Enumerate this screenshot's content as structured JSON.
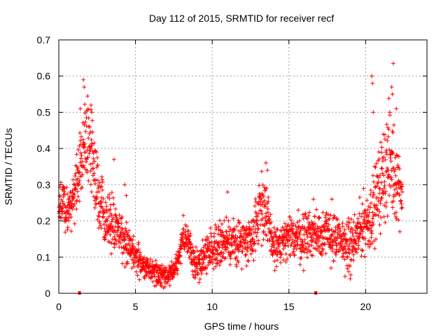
{
  "chart_data": {
    "type": "scatter",
    "title": "Day 112 of 2015, SRMTID for receiver recf",
    "xlabel": "GPS time / hours",
    "ylabel": "SRMTID / TECUs",
    "xlim": [
      0,
      24
    ],
    "ylim": [
      0,
      0.7
    ],
    "x_ticks": [
      0,
      5,
      10,
      15,
      20
    ],
    "x_tick_labels": [
      "0",
      "5",
      "10",
      "15",
      "20"
    ],
    "y_ticks": [
      0,
      0.1,
      0.2,
      0.3,
      0.4,
      0.5,
      0.6,
      0.7
    ],
    "y_tick_labels": [
      "0",
      "0.1",
      "0.2",
      "0.3",
      "0.4",
      "0.5",
      "0.6",
      "0.7"
    ],
    "grid": true,
    "marker": "+",
    "series": [
      {
        "name": "recf",
        "color": "#ff0000",
        "trend": {
          "x": [
            0,
            0.3,
            0.6,
            0.9,
            1.2,
            1.5,
            1.8,
            2.1,
            2.4,
            2.7,
            3.0,
            3.3,
            3.6,
            3.9,
            4.2,
            4.5,
            4.8,
            5.1,
            5.4,
            5.7,
            6.0,
            6.3,
            6.6,
            6.9,
            7.2,
            7.5,
            7.8,
            8.1,
            8.4,
            8.7,
            9.0,
            9.3,
            9.6,
            9.9,
            10.2,
            10.5,
            10.8,
            11.1,
            11.4,
            11.7,
            12.0,
            12.3,
            12.6,
            12.9,
            13.2,
            13.5,
            13.8,
            14.1,
            14.4,
            14.7,
            15.0,
            15.3,
            15.6,
            15.9,
            16.2,
            16.5,
            16.8,
            17.1,
            17.4,
            17.7,
            18.0,
            18.3,
            18.6,
            18.9,
            19.2,
            19.5,
            19.8,
            20.1,
            20.4,
            20.7,
            21.0,
            21.3,
            21.6,
            21.9,
            22.2,
            22.4
          ],
          "y": [
            0.26,
            0.24,
            0.23,
            0.25,
            0.3,
            0.4,
            0.45,
            0.38,
            0.3,
            0.26,
            0.22,
            0.2,
            0.19,
            0.17,
            0.15,
            0.13,
            0.12,
            0.1,
            0.08,
            0.065,
            0.06,
            0.055,
            0.05,
            0.05,
            0.055,
            0.06,
            0.09,
            0.16,
            0.15,
            0.1,
            0.08,
            0.09,
            0.11,
            0.12,
            0.13,
            0.14,
            0.14,
            0.13,
            0.14,
            0.14,
            0.15,
            0.15,
            0.16,
            0.2,
            0.26,
            0.22,
            0.15,
            0.13,
            0.13,
            0.14,
            0.15,
            0.16,
            0.16,
            0.15,
            0.17,
            0.16,
            0.17,
            0.17,
            0.16,
            0.16,
            0.15,
            0.14,
            0.14,
            0.13,
            0.14,
            0.16,
            0.19,
            0.2,
            0.22,
            0.26,
            0.3,
            0.35,
            0.37,
            0.33,
            0.3,
            0.28
          ],
          "spread": [
            0.03,
            0.03,
            0.03,
            0.03,
            0.04,
            0.06,
            0.06,
            0.05,
            0.05,
            0.04,
            0.04,
            0.035,
            0.035,
            0.03,
            0.03,
            0.025,
            0.025,
            0.02,
            0.02,
            0.015,
            0.015,
            0.015,
            0.015,
            0.015,
            0.015,
            0.015,
            0.02,
            0.02,
            0.02,
            0.02,
            0.02,
            0.025,
            0.025,
            0.025,
            0.025,
            0.03,
            0.03,
            0.03,
            0.03,
            0.03,
            0.03,
            0.03,
            0.03,
            0.04,
            0.05,
            0.05,
            0.03,
            0.03,
            0.03,
            0.03,
            0.03,
            0.035,
            0.035,
            0.035,
            0.035,
            0.035,
            0.035,
            0.035,
            0.035,
            0.035,
            0.035,
            0.035,
            0.035,
            0.035,
            0.035,
            0.035,
            0.04,
            0.04,
            0.045,
            0.05,
            0.06,
            0.07,
            0.07,
            0.06,
            0.05,
            0.05
          ]
        },
        "outliers": [
          {
            "x": 1.6,
            "y": 0.59
          },
          {
            "x": 1.65,
            "y": 0.57
          },
          {
            "x": 2.1,
            "y": 0.52
          },
          {
            "x": 2.15,
            "y": 0.5
          },
          {
            "x": 1.4,
            "y": 0.51
          },
          {
            "x": 3.6,
            "y": 0.37
          },
          {
            "x": 4.3,
            "y": 0.3
          },
          {
            "x": 4.4,
            "y": 0.27
          },
          {
            "x": 13.5,
            "y": 0.36
          },
          {
            "x": 13.6,
            "y": 0.34
          },
          {
            "x": 11.0,
            "y": 0.28
          },
          {
            "x": 16.6,
            "y": 0.26
          },
          {
            "x": 17.8,
            "y": 0.26
          },
          {
            "x": 20.4,
            "y": 0.6
          },
          {
            "x": 20.45,
            "y": 0.58
          },
          {
            "x": 20.5,
            "y": 0.5
          },
          {
            "x": 21.8,
            "y": 0.635
          },
          {
            "x": 21.7,
            "y": 0.57
          },
          {
            "x": 21.75,
            "y": 0.55
          },
          {
            "x": 22.0,
            "y": 0.51
          },
          {
            "x": 19.0,
            "y": 0.04
          },
          {
            "x": 18.9,
            "y": 0.06
          }
        ],
        "x_markers": [
          1.35,
          16.75
        ]
      }
    ]
  }
}
